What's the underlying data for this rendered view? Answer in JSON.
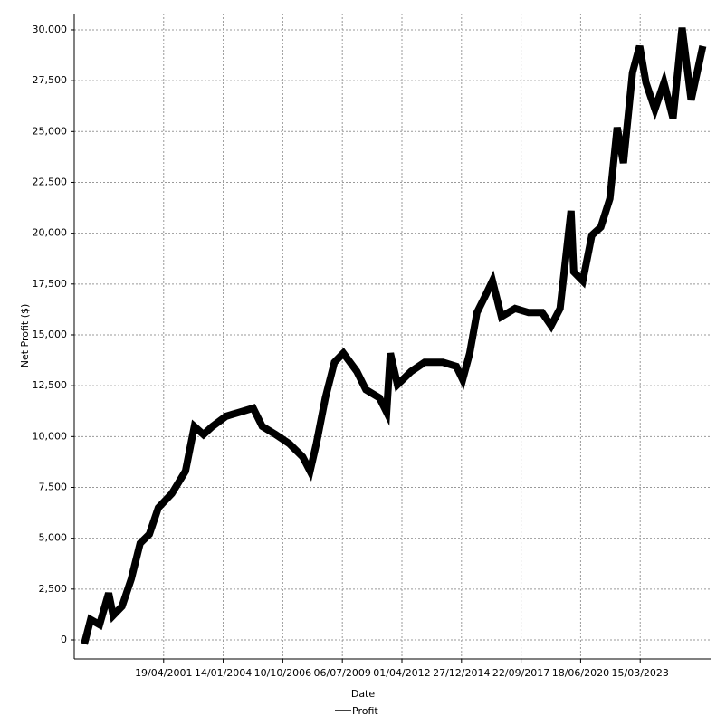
{
  "chart_data": {
    "type": "line",
    "x_label": "Date",
    "y_label": "Net Profit ($)",
    "x": [
      "25/08/1997",
      "10/12/1997",
      "10/05/1998",
      "08/10/1998",
      "24/12/1998",
      "22/05/1999",
      "23/10/1999",
      "21/03/2000",
      "22/08/2000",
      "19/01/2001",
      "05/09/2001",
      "20/04/2002",
      "17/09/2002",
      "17/02/2003",
      "16/07/2003",
      "01/03/2004",
      "16/10/2004",
      "01/06/2005",
      "30/10/2005",
      "13/06/2006",
      "27/01/2007",
      "10/09/2007",
      "10/01/2008",
      "26/04/2008",
      "24/09/2008",
      "23/02/2009",
      "23/07/2009",
      "07/03/2010",
      "06/08/2010",
      "21/03/2011",
      "19/07/2011",
      "20/09/2011",
      "18/01/2012",
      "02/09/2012",
      "18/04/2013",
      "17/02/2014",
      "01/10/2014",
      "15/01/2015",
      "15/05/2015",
      "13/09/2015",
      "13/02/2016",
      "29/05/2016",
      "27/10/2016",
      "13/06/2017",
      "26/01/2018",
      "09/09/2018",
      "09/02/2019",
      "09/07/2019",
      "08/01/2020",
      "24/02/2020",
      "24/07/2020",
      "23/12/2020",
      "22/05/2021",
      "22/10/2021",
      "21/02/2022",
      "07/06/2022",
      "06/11/2022",
      "06/03/2023",
      "20/06/2023",
      "18/11/2023",
      "17/04/2024",
      "17/09/2024",
      "16/02/2025",
      "17/07/2025",
      "29/01/2026"
    ],
    "series": [
      {
        "name": "Profit",
        "color": "#000000",
        "values": [
          -200,
          1000,
          750,
          2300,
          1200,
          1650,
          3000,
          4750,
          5200,
          6500,
          7200,
          8300,
          10500,
          10100,
          10500,
          11000,
          11200,
          11400,
          10500,
          10100,
          9650,
          9000,
          8300,
          9650,
          11900,
          13650,
          14100,
          13200,
          12300,
          11900,
          11200,
          14100,
          12550,
          13200,
          13650,
          13650,
          13450,
          12800,
          14100,
          16100,
          17000,
          17650,
          15900,
          16300,
          16100,
          16100,
          15450,
          16300,
          21100,
          18100,
          17650,
          19900,
          20300,
          21700,
          25200,
          23450,
          27900,
          29200,
          27400,
          26100,
          27400,
          25650,
          30100,
          26550,
          29200
        ]
      }
    ],
    "xlim": [
      "10/03/1997",
      "09/06/2026"
    ],
    "xticks": [
      "19/04/2001",
      "14/01/2004",
      "10/10/2006",
      "06/07/2009",
      "01/04/2012",
      "27/12/2014",
      "22/09/2017",
      "18/06/2020",
      "15/03/2023"
    ],
    "ylim": [
      -935,
      30800
    ],
    "yticks": [
      0,
      {
        "value": 2500,
        "label": "2,500"
      },
      {
        "value": 5000,
        "label": "5,000"
      },
      {
        "value": 7500,
        "label": "7,500"
      },
      {
        "value": 10000,
        "label": "10,000"
      },
      {
        "value": 12500,
        "label": "12,500"
      },
      {
        "value": 15000,
        "label": "15,000"
      },
      {
        "value": 17500,
        "label": "17,500"
      },
      {
        "value": 20000,
        "label": "20,000"
      },
      {
        "value": 22500,
        "label": "22,500"
      },
      {
        "value": 25000,
        "label": "25,000"
      },
      {
        "value": 27500,
        "label": "27,500"
      },
      {
        "value": 30000,
        "label": "30,000"
      }
    ],
    "grid": true,
    "legend": "bottom"
  }
}
